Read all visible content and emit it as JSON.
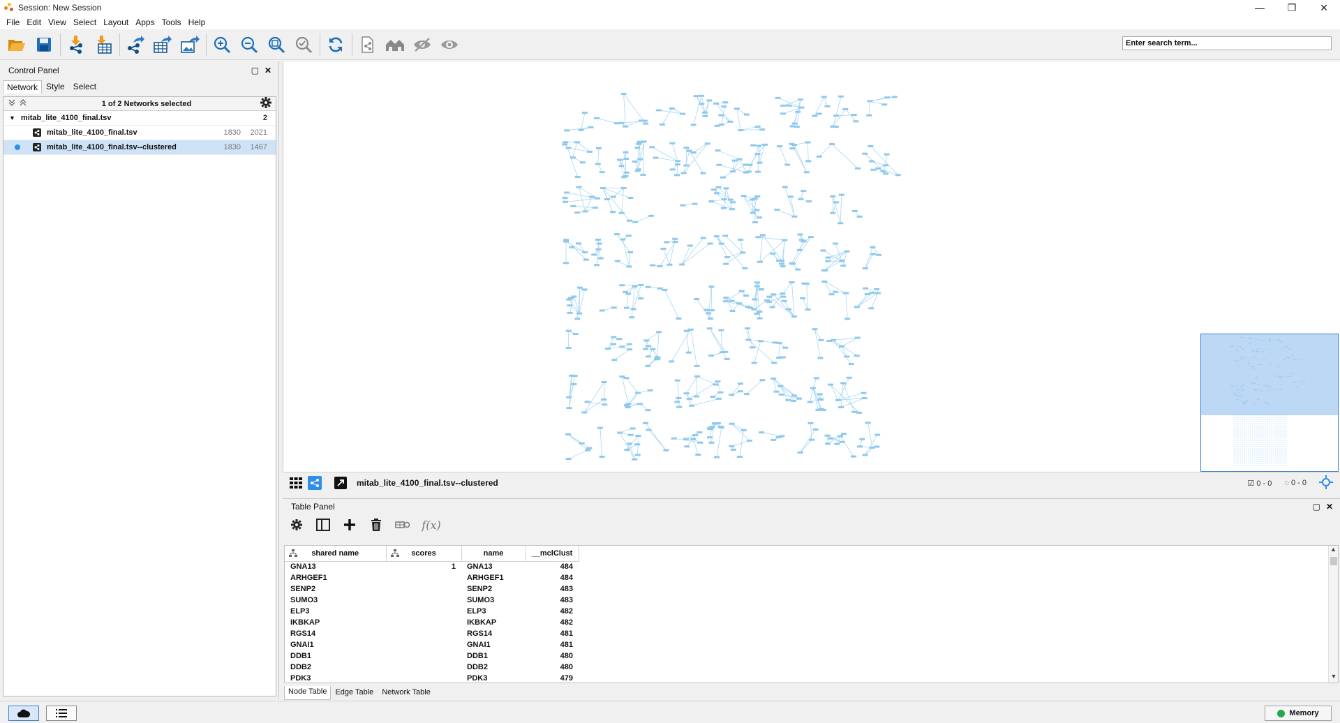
{
  "window": {
    "title": "Session: New Session",
    "controls": {
      "minimize": "—",
      "restore": "❐",
      "close": "✕"
    }
  },
  "menu": [
    "File",
    "Edit",
    "View",
    "Select",
    "Layout",
    "Apps",
    "Tools",
    "Help"
  ],
  "toolbar": {
    "buttons": [
      "open-session-icon",
      "save-session-icon",
      "import-network-icon",
      "import-table-icon",
      "export-network-icon",
      "export-table-icon",
      "export-image-icon",
      "zoom-in-icon",
      "zoom-out-icon",
      "zoom-fit-icon",
      "zoom-selected-icon",
      "refresh-icon",
      "new-network-from-selection-icon",
      "show-all-icon",
      "hide-icon",
      "show-icon"
    ],
    "search_placeholder": "Enter search term..."
  },
  "control_panel": {
    "title": "Control Panel",
    "tabs": [
      "Network",
      "Style",
      "Select"
    ],
    "active_tab": "Network",
    "selection_text": "1 of 2 Networks selected",
    "collection": {
      "name": "mitab_lite_4100_final.tsv",
      "count": "2"
    },
    "networks": [
      {
        "name": "mitab_lite_4100_final.tsv",
        "nodes": "1830",
        "edges": "2021",
        "selected": false
      },
      {
        "name": "mitab_lite_4100_final.tsv--clustered",
        "nodes": "1830",
        "edges": "1467",
        "selected": true
      }
    ]
  },
  "view": {
    "current_network": "mitab_lite_4100_final.tsv--clustered",
    "selected_nodes": "0 - 0",
    "hidden": "0 - 0",
    "node_color": "#8ec9ec",
    "edge_color": "#a8d6f2"
  },
  "table_panel": {
    "title": "Table Panel",
    "columns": [
      "shared name",
      "scores",
      "name",
      "__mclClust"
    ],
    "rows": [
      {
        "shared_name": "GNA13",
        "scores": "1",
        "name": "GNA13",
        "cluster": "484"
      },
      {
        "shared_name": "ARHGEF1",
        "scores": "",
        "name": "ARHGEF1",
        "cluster": "484"
      },
      {
        "shared_name": "SENP2",
        "scores": "",
        "name": "SENP2",
        "cluster": "483"
      },
      {
        "shared_name": "SUMO3",
        "scores": "",
        "name": "SUMO3",
        "cluster": "483"
      },
      {
        "shared_name": "ELP3",
        "scores": "",
        "name": "ELP3",
        "cluster": "482"
      },
      {
        "shared_name": "IKBKAP",
        "scores": "",
        "name": "IKBKAP",
        "cluster": "482"
      },
      {
        "shared_name": "RGS14",
        "scores": "",
        "name": "RGS14",
        "cluster": "481"
      },
      {
        "shared_name": "GNAI1",
        "scores": "",
        "name": "GNAI1",
        "cluster": "481"
      },
      {
        "shared_name": "DDB1",
        "scores": "",
        "name": "DDB1",
        "cluster": "480"
      },
      {
        "shared_name": "DDB2",
        "scores": "",
        "name": "DDB2",
        "cluster": "480"
      },
      {
        "shared_name": "PDK3",
        "scores": "",
        "name": "PDK3",
        "cluster": "479"
      }
    ],
    "tabs": [
      "Node Table",
      "Edge Table",
      "Network Table"
    ],
    "active_tab": "Node Table"
  },
  "statusbar": {
    "memory_label": "Memory"
  }
}
